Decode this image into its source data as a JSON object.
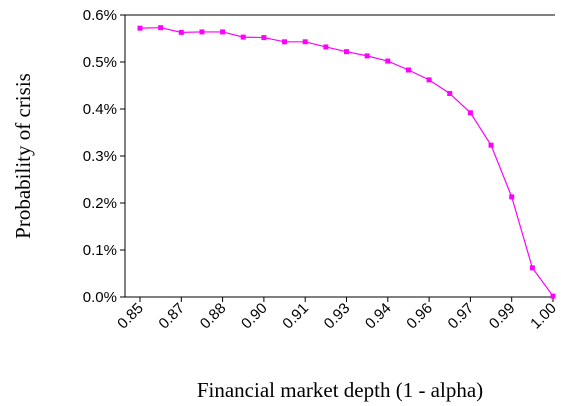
{
  "chart_data": {
    "type": "line",
    "x_label": "Financial market depth (1 - alpha)",
    "y_label": "Probability of crisis",
    "categories": [
      "0.85",
      null,
      "0.87",
      null,
      "0.88",
      null,
      "0.90",
      null,
      "0.91",
      null,
      "0.93",
      null,
      "0.94",
      null,
      "0.96",
      null,
      "0.97",
      null,
      "0.99",
      null,
      "1.00"
    ],
    "series": [
      {
        "color": "#ff00ff",
        "values": [
          0.572,
          0.573,
          0.563,
          0.564,
          0.564,
          0.553,
          0.552,
          0.543,
          0.543,
          0.532,
          0.522,
          0.513,
          0.502,
          0.483,
          0.462,
          0.433,
          0.392,
          0.323,
          0.213,
          0.062,
          0.002
        ]
      }
    ],
    "ylim": [
      0,
      0.6
    ],
    "yticks": [
      {
        "value": 0,
        "label": "0.0%"
      },
      {
        "value": 0.1,
        "label": "0.1%"
      },
      {
        "value": 0.2,
        "label": "0.2%"
      },
      {
        "value": 0.3,
        "label": "0.3%"
      },
      {
        "value": 0.4,
        "label": "0.4%"
      },
      {
        "value": 0.5,
        "label": "0.5%"
      },
      {
        "value": 0.6,
        "label": "0.6%"
      }
    ],
    "grid": false
  }
}
